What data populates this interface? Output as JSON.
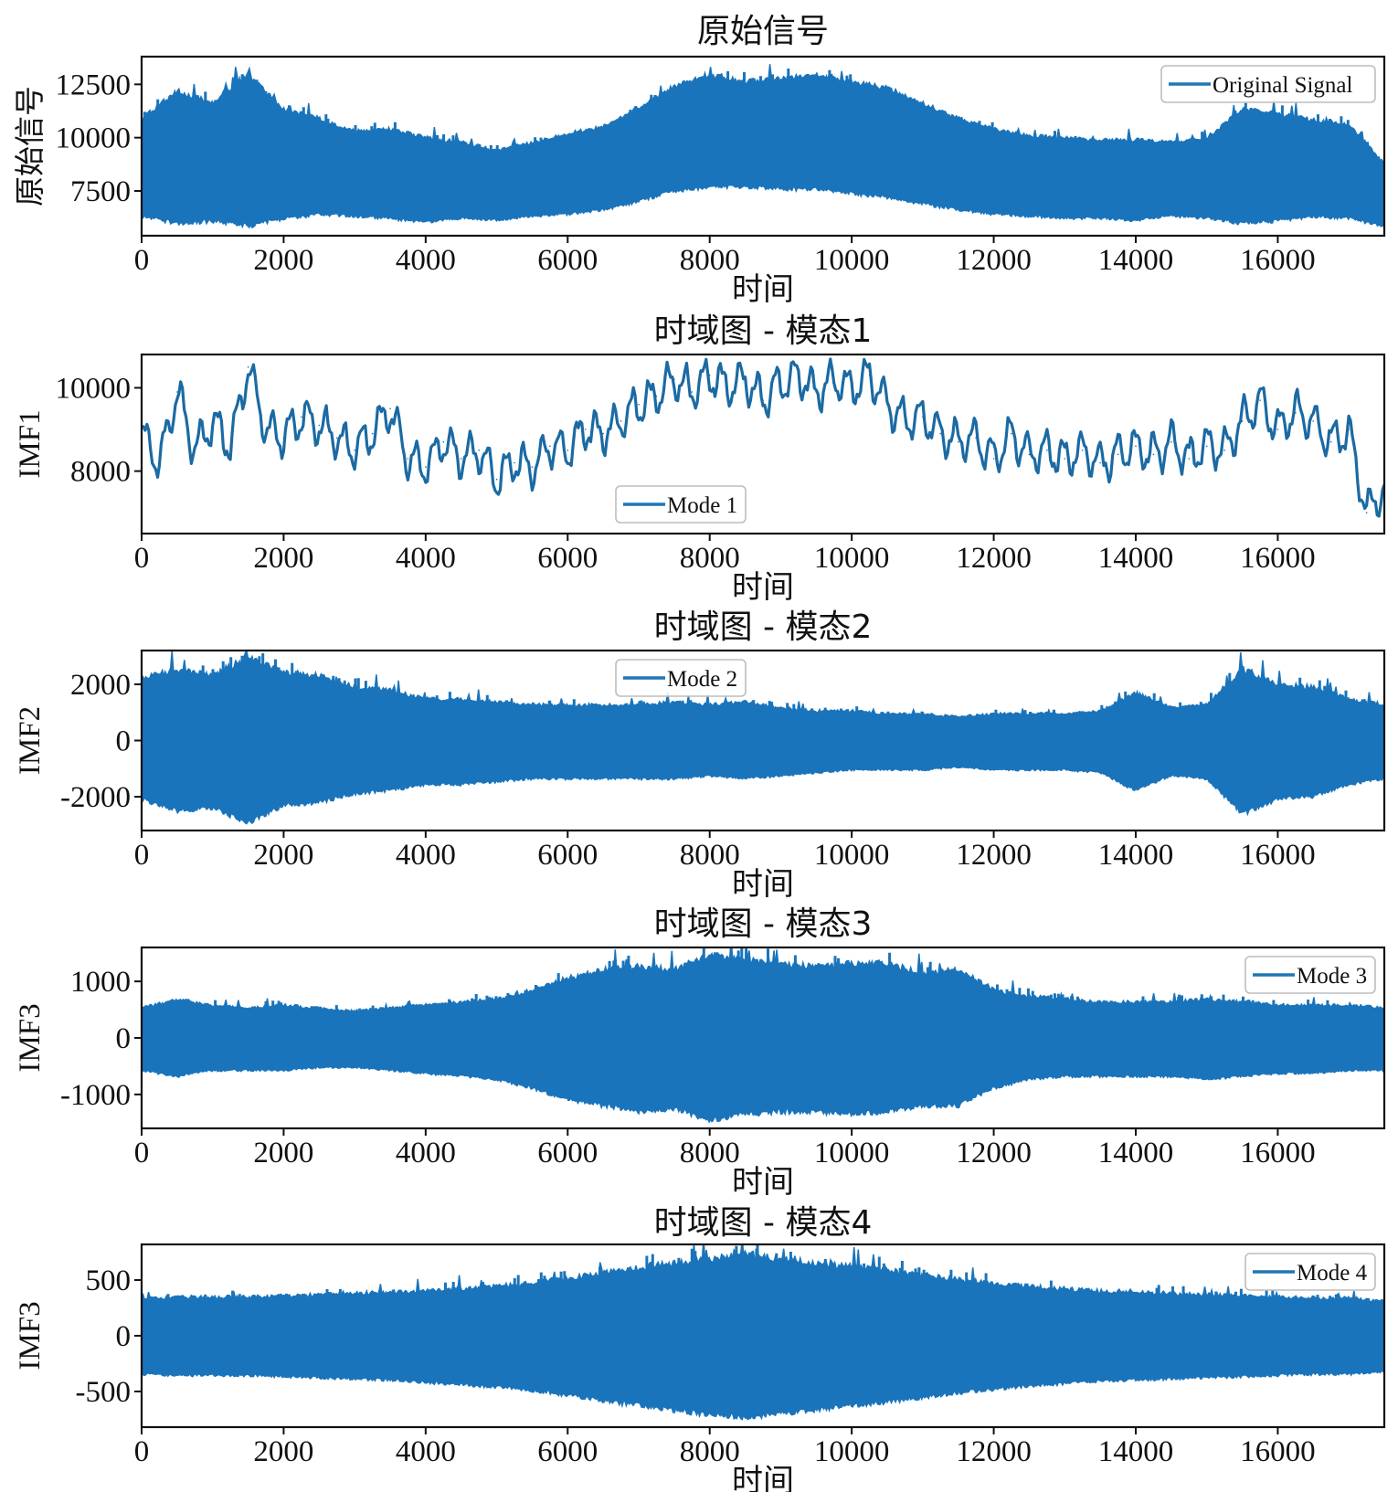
{
  "figure": {
    "line_color": "#1f77b4",
    "trace_color_dense": "#1a74bb"
  },
  "chart_data": [
    {
      "type": "line",
      "title": "原始信号",
      "xlabel": "时间",
      "ylabel": "原始信号",
      "legend": "Original Signal",
      "legend_position": "top-right",
      "xlim": [
        0,
        17500
      ],
      "ylim": [
        5400,
        13800
      ],
      "x_ticks": [
        "0",
        "2000",
        "4000",
        "6000",
        "8000",
        "10000",
        "12000",
        "14000",
        "16000"
      ],
      "y_ticks": [
        7500,
        10000,
        12500
      ],
      "y_tick_labels": [
        "7500",
        "10000",
        "12500"
      ],
      "style": "dense",
      "envelope": {
        "x": [
          0,
          500,
          1000,
          1500,
          2000,
          2500,
          3000,
          3500,
          4000,
          4500,
          5000,
          5500,
          6000,
          6500,
          7000,
          7500,
          8000,
          8500,
          9000,
          9500,
          10000,
          10500,
          11000,
          11500,
          12000,
          12500,
          13000,
          13500,
          14000,
          14500,
          15000,
          15500,
          16000,
          16500,
          17000,
          17500
        ],
        "upper": [
          10800,
          12000,
          11500,
          12800,
          11200,
          10800,
          10200,
          10300,
          9900,
          9700,
          9300,
          9700,
          10100,
          10400,
          11300,
          12300,
          12800,
          12500,
          12700,
          12800,
          12500,
          12200,
          11500,
          10800,
          10300,
          10000,
          9900,
          9800,
          9800,
          9700,
          9900,
          11200,
          11000,
          10700,
          10500,
          8700
        ],
        "lower": [
          6400,
          6100,
          6200,
          6000,
          6300,
          6500,
          6400,
          6300,
          6100,
          6300,
          6200,
          6400,
          6500,
          6700,
          7100,
          7600,
          7800,
          7800,
          7700,
          7700,
          7500,
          7300,
          7000,
          6700,
          6500,
          6400,
          6300,
          6300,
          6200,
          6400,
          6300,
          6100,
          6200,
          6400,
          6300,
          5900
        ]
      }
    },
    {
      "type": "line",
      "title": "时域图 - 模态1",
      "xlabel": "时间",
      "ylabel": "IMF1",
      "legend": "Mode 1",
      "legend_position": "lower center",
      "xlim": [
        0,
        17500
      ],
      "ylim": [
        6500,
        10800
      ],
      "x_ticks": [
        "0",
        "2000",
        "4000",
        "6000",
        "8000",
        "10000",
        "12000",
        "14000",
        "16000"
      ],
      "y_ticks": [
        8000,
        10000
      ],
      "y_tick_labels": [
        "8000",
        "10000"
      ],
      "style": "line",
      "x": [
        0,
        250,
        500,
        750,
        1000,
        1250,
        1500,
        1750,
        2000,
        2250,
        2500,
        2750,
        3000,
        3250,
        3500,
        3750,
        4000,
        4250,
        4500,
        4750,
        5000,
        5250,
        5500,
        5750,
        6000,
        6250,
        6500,
        6750,
        7000,
        7250,
        7500,
        7750,
        8000,
        8250,
        8500,
        8750,
        9000,
        9250,
        9500,
        9750,
        10000,
        10250,
        10500,
        10750,
        11000,
        11250,
        11500,
        11750,
        12000,
        12250,
        12500,
        12750,
        13000,
        13250,
        13500,
        13750,
        14000,
        14250,
        14500,
        14750,
        15000,
        15250,
        15500,
        15750,
        16000,
        16250,
        16500,
        16750,
        17000,
        17250,
        17500
      ],
      "y": [
        8900,
        8200,
        9900,
        8500,
        9200,
        8600,
        10500,
        9000,
        8800,
        9300,
        9100,
        8800,
        8500,
        8900,
        9500,
        8300,
        8100,
        8700,
        8300,
        8500,
        7800,
        8200,
        8100,
        8600,
        8500,
        9000,
        8900,
        9200,
        9600,
        9800,
        10200,
        9900,
        10300,
        10000,
        10200,
        9700,
        10100,
        10300,
        9900,
        10200,
        10000,
        10300,
        9600,
        9200,
        9300,
        8900,
        8700,
        8800,
        8300,
        8900,
        8400,
        8500,
        8300,
        8500,
        8200,
        8400,
        8600,
        8400,
        8700,
        8300,
        8600,
        8500,
        9200,
        9700,
        9000,
        9400,
        9200,
        8700,
        9000,
        7000,
        7600
      ]
    },
    {
      "type": "line",
      "title": "时域图 - 模态2",
      "xlabel": "时间",
      "ylabel": "IMF2",
      "legend": "Mode 2",
      "legend_position": "upper center",
      "xlim": [
        0,
        17500
      ],
      "ylim": [
        -3200,
        3200
      ],
      "x_ticks": [
        "0",
        "2000",
        "4000",
        "6000",
        "8000",
        "10000",
        "12000",
        "14000",
        "16000"
      ],
      "y_ticks": [
        -2000,
        0,
        2000
      ],
      "y_tick_labels": [
        "-2000",
        "0",
        "2000"
      ],
      "style": "dense",
      "envelope": {
        "x": [
          0,
          500,
          1000,
          1500,
          2000,
          2500,
          3000,
          3500,
          4000,
          4500,
          5000,
          5500,
          6000,
          6500,
          7000,
          7500,
          8000,
          8500,
          9000,
          9500,
          10000,
          10500,
          11000,
          11500,
          12000,
          12500,
          13000,
          13500,
          14000,
          14500,
          15000,
          15500,
          16000,
          16500,
          17000,
          17500
        ],
        "upper": [
          2100,
          2400,
          2200,
          2800,
          2300,
          2200,
          1800,
          1700,
          1400,
          1400,
          1300,
          1200,
          1200,
          1200,
          1200,
          1300,
          1200,
          1300,
          1100,
          1000,
          1000,
          900,
          900,
          800,
          900,
          900,
          900,
          1000,
          1600,
          1100,
          1200,
          2400,
          1900,
          1800,
          1400,
          1200
        ],
        "lower": [
          -2000,
          -2400,
          -2300,
          -2800,
          -2200,
          -2100,
          -1800,
          -1700,
          -1500,
          -1500,
          -1400,
          -1300,
          -1300,
          -1300,
          -1300,
          -1300,
          -1200,
          -1300,
          -1200,
          -1100,
          -1000,
          -1000,
          -1000,
          -900,
          -1000,
          -1000,
          -1000,
          -1100,
          -1700,
          -1200,
          -1300,
          -2500,
          -2000,
          -1900,
          -1500,
          -1300
        ]
      }
    },
    {
      "type": "line",
      "title": "时域图 - 模态3",
      "xlabel": "时间",
      "ylabel": "IMF3",
      "legend": "Mode 3",
      "legend_position": "top-right",
      "xlim": [
        0,
        17500
      ],
      "ylim": [
        -1600,
        1600
      ],
      "x_ticks": [
        "0",
        "2000",
        "4000",
        "6000",
        "8000",
        "10000",
        "12000",
        "14000",
        "16000"
      ],
      "y_ticks": [
        -1000,
        0,
        1000
      ],
      "y_tick_labels": [
        "-1000",
        "0",
        "1000"
      ],
      "style": "dense",
      "envelope": {
        "x": [
          0,
          500,
          1000,
          1500,
          2000,
          2500,
          3000,
          3500,
          4000,
          4500,
          5000,
          5500,
          6000,
          6500,
          7000,
          7500,
          8000,
          8500,
          9000,
          9500,
          10000,
          10500,
          11000,
          11500,
          12000,
          12500,
          13000,
          13500,
          14000,
          14500,
          15000,
          15500,
          16000,
          16500,
          17000,
          17500
        ],
        "upper": [
          500,
          650,
          550,
          500,
          550,
          500,
          450,
          500,
          550,
          600,
          650,
          800,
          1000,
          1150,
          1200,
          1150,
          1400,
          1300,
          1250,
          1200,
          1250,
          1250,
          1100,
          1150,
          800,
          700,
          650,
          600,
          600,
          600,
          650,
          600,
          550,
          550,
          550,
          500
        ],
        "lower": [
          -550,
          -650,
          -550,
          -550,
          -550,
          -500,
          -500,
          -550,
          -600,
          -650,
          -700,
          -850,
          -1050,
          -1150,
          -1250,
          -1200,
          -1400,
          -1300,
          -1250,
          -1250,
          -1300,
          -1250,
          -1150,
          -1150,
          -850,
          -700,
          -650,
          -650,
          -650,
          -650,
          -700,
          -650,
          -600,
          -600,
          -550,
          -550
        ]
      }
    },
    {
      "type": "line",
      "title": "时域图 - 模态4",
      "xlabel": "时间",
      "ylabel": "IMF3",
      "legend": "Mode 4",
      "legend_position": "top-right",
      "xlim": [
        0,
        17500
      ],
      "ylim": [
        -820,
        820
      ],
      "x_ticks": [
        "0",
        "2000",
        "4000",
        "6000",
        "8000",
        "10000",
        "12000",
        "14000",
        "16000"
      ],
      "y_ticks": [
        -500,
        0,
        500
      ],
      "y_tick_labels": [
        "-500",
        "0",
        "500"
      ],
      "style": "dense",
      "envelope": {
        "x": [
          0,
          500,
          1000,
          1500,
          2000,
          2500,
          3000,
          3500,
          4000,
          4500,
          5000,
          5500,
          6000,
          6500,
          7000,
          7500,
          8000,
          8500,
          9000,
          9500,
          10000,
          10500,
          11000,
          11500,
          12000,
          12500,
          13000,
          13500,
          14000,
          14500,
          15000,
          15500,
          16000,
          16500,
          17000,
          17500
        ],
        "upper": [
          320,
          330,
          330,
          330,
          340,
          350,
          360,
          370,
          380,
          400,
          420,
          450,
          490,
          540,
          580,
          620,
          650,
          700,
          650,
          620,
          590,
          560,
          520,
          480,
          450,
          420,
          400,
          380,
          370,
          360,
          350,
          340,
          330,
          320,
          320,
          300
        ],
        "lower": [
          -330,
          -340,
          -340,
          -340,
          -350,
          -360,
          -370,
          -380,
          -400,
          -420,
          -440,
          -470,
          -510,
          -560,
          -600,
          -640,
          -680,
          -700,
          -670,
          -640,
          -600,
          -570,
          -530,
          -490,
          -460,
          -430,
          -410,
          -390,
          -380,
          -370,
          -360,
          -350,
          -340,
          -330,
          -330,
          -310
        ]
      }
    }
  ]
}
